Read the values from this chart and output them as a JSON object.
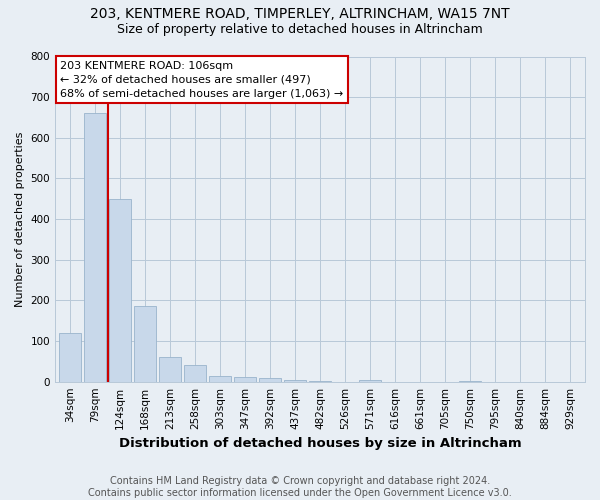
{
  "title1": "203, KENTMERE ROAD, TIMPERLEY, ALTRINCHAM, WA15 7NT",
  "title2": "Size of property relative to detached houses in Altrincham",
  "xlabel": "Distribution of detached houses by size in Altrincham",
  "ylabel": "Number of detached properties",
  "categories": [
    "34sqm",
    "79sqm",
    "124sqm",
    "168sqm",
    "213sqm",
    "258sqm",
    "303sqm",
    "347sqm",
    "392sqm",
    "437sqm",
    "482sqm",
    "526sqm",
    "571sqm",
    "616sqm",
    "661sqm",
    "705sqm",
    "750sqm",
    "795sqm",
    "840sqm",
    "884sqm",
    "929sqm"
  ],
  "values": [
    120,
    660,
    450,
    185,
    60,
    40,
    15,
    12,
    8,
    5,
    2,
    0,
    3,
    0,
    0,
    0,
    2,
    0,
    0,
    0,
    0
  ],
  "bar_color": "#c8d8ea",
  "bar_edge_color": "#9ab4cc",
  "vline_x_index": 1.5,
  "vline_color": "#cc0000",
  "annotation_text": "203 KENTMERE ROAD: 106sqm\n← 32% of detached houses are smaller (497)\n68% of semi-detached houses are larger (1,063) →",
  "annotation_box_facecolor": "#ffffff",
  "annotation_box_edgecolor": "#cc0000",
  "ylim": [
    0,
    800
  ],
  "yticks": [
    0,
    100,
    200,
    300,
    400,
    500,
    600,
    700,
    800
  ],
  "footer": "Contains HM Land Registry data © Crown copyright and database right 2024.\nContains public sector information licensed under the Open Government Licence v3.0.",
  "bg_color": "#e8eef4",
  "plot_bg_color": "#e8eef4",
  "grid_color": "#b8c8d8",
  "title_fontsize": 10,
  "subtitle_fontsize": 9,
  "ylabel_fontsize": 8,
  "xlabel_fontsize": 9.5,
  "tick_fontsize": 7.5,
  "annotation_fontsize": 8,
  "footer_fontsize": 7
}
